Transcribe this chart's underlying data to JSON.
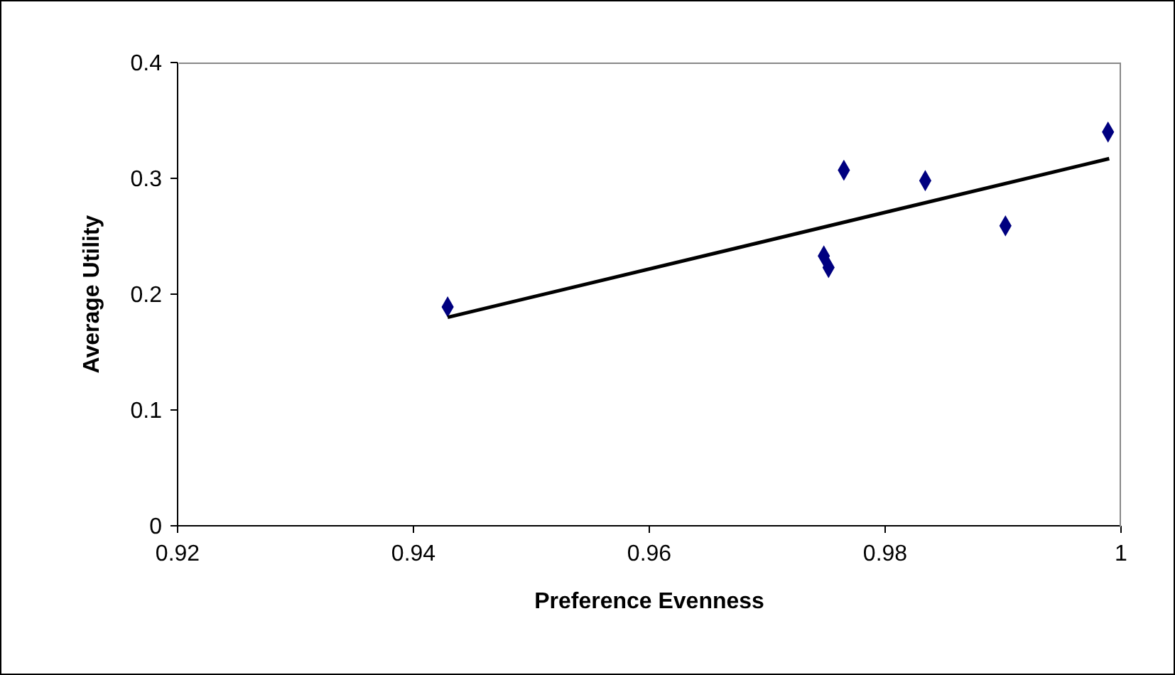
{
  "chart_data": {
    "type": "scatter",
    "xlabel": "Preference Evenness",
    "ylabel": "Average Utility",
    "xlim": [
      0.92,
      1
    ],
    "xticks": [
      0.92,
      0.94,
      0.96,
      0.98,
      1
    ],
    "ylim": [
      0,
      0.4
    ],
    "yticks": [
      0,
      0.1,
      0.2,
      0.3,
      0.4
    ],
    "grid": false,
    "marker": "diamond",
    "series": [
      {
        "color": "#000080",
        "x": [
          0.9429,
          0.9748,
          0.9752,
          0.9765,
          0.9834,
          0.9902,
          0.9989
        ],
        "values": [
          0.189,
          0.233,
          0.223,
          0.307,
          0.298,
          0.259,
          0.34
        ]
      },
      {
        "type": "line",
        "color": "#000000",
        "marker": "none",
        "line_style": "solid",
        "x": [
          0.9429,
          0.999
        ],
        "values": [
          0.18,
          0.317
        ]
      }
    ]
  }
}
